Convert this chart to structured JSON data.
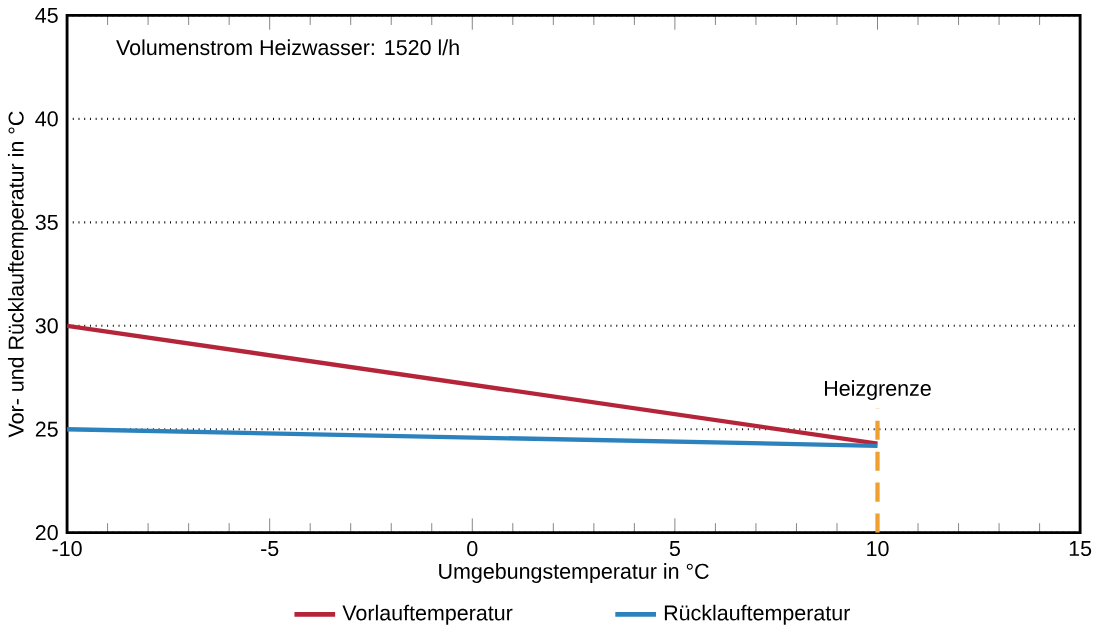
{
  "chart_data": {
    "type": "line",
    "xlabel": "Umgebungstemperatur in °C",
    "ylabel": "Vor- und Rücklauftemperatur in °C",
    "x": [
      -10,
      10
    ],
    "series": [
      {
        "name": "Vorlauftemperatur",
        "color": "#b5253a",
        "values": [
          30,
          24.3
        ]
      },
      {
        "name": "Rücklauftemperatur",
        "color": "#2b82bd",
        "values": [
          25,
          24.2
        ]
      }
    ],
    "xlim": [
      -10,
      15
    ],
    "ylim": [
      20,
      45
    ],
    "xticks": [
      -10,
      -5,
      0,
      5,
      10,
      15
    ],
    "yticks": [
      20,
      25,
      30,
      35,
      40,
      45
    ],
    "grid": "y",
    "legend": "bottom",
    "marker": "none",
    "line_style": "solid",
    "ref_lines": [
      {
        "axis": "x",
        "value": 10,
        "label": "Heizgrenze",
        "color": "#f0a030",
        "line_style": "dashed"
      }
    ],
    "annotations": [
      "Volumenstrom Heizwasser: 1520 l/h"
    ]
  }
}
